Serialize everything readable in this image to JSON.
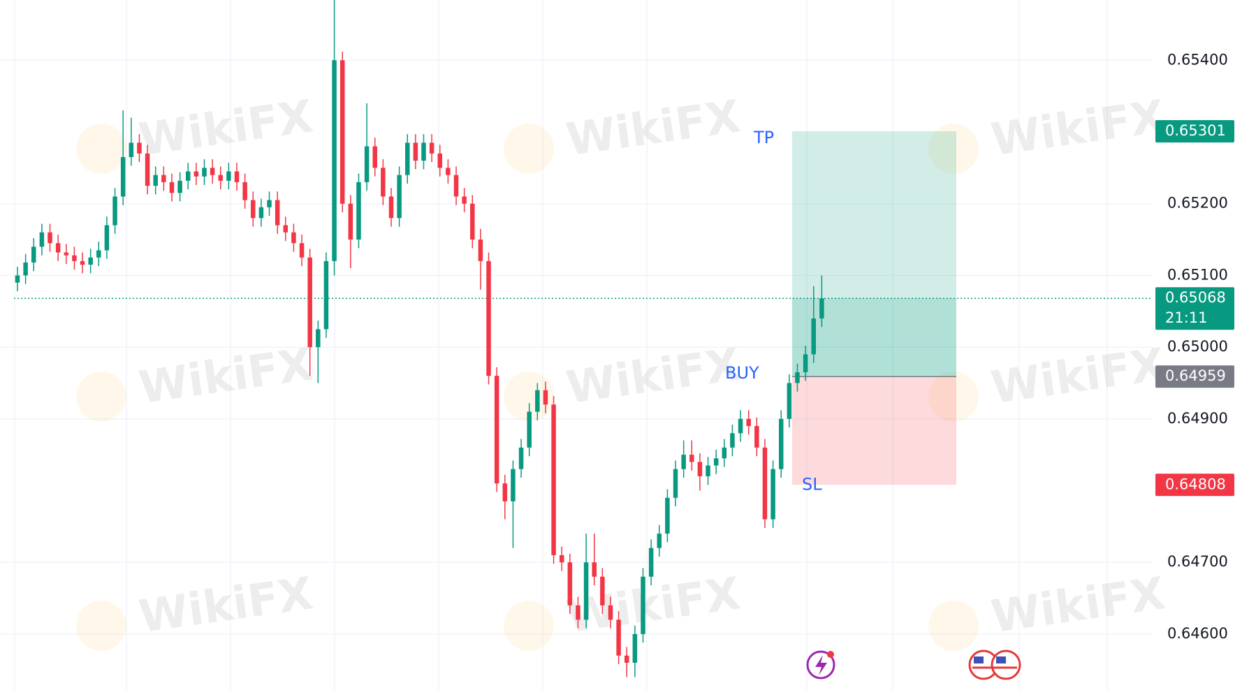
{
  "chart_data": {
    "type": "candlestick",
    "watermark": "WikiFX",
    "ylim": [
      0.64522,
      0.65484
    ],
    "yticks": [
      {
        "value": 0.654,
        "label": "0.65400"
      },
      {
        "value": 0.652,
        "label": "0.65200"
      },
      {
        "value": 0.651,
        "label": "0.65100"
      },
      {
        "value": 0.65,
        "label": "0.65000"
      },
      {
        "value": 0.649,
        "label": "0.64900"
      },
      {
        "value": 0.647,
        "label": "0.64700"
      },
      {
        "value": 0.646,
        "label": "0.64600"
      }
    ],
    "grid": true,
    "up_color": "#089981",
    "down_color": "#f23645",
    "open": [
      0.6509,
      0.651,
      0.65118,
      0.6514,
      0.6516,
      0.65145,
      0.65132,
      0.65128,
      0.6512,
      0.65115,
      0.65125,
      0.65135,
      0.6517,
      0.6521,
      0.65265,
      0.65285,
      0.6527,
      0.65225,
      0.6524,
      0.6523,
      0.65215,
      0.65232,
      0.65245,
      0.65238,
      0.6525,
      0.6524,
      0.65232,
      0.65245,
      0.6523,
      0.65205,
      0.6518,
      0.65195,
      0.65205,
      0.6517,
      0.6516,
      0.65145,
      0.65125,
      0.65,
      0.65025,
      0.6512,
      0.654,
      0.652,
      0.6515,
      0.6523,
      0.6528,
      0.6525,
      0.6521,
      0.6518,
      0.6524,
      0.65285,
      0.6526,
      0.65285,
      0.6527,
      0.6525,
      0.6524,
      0.6521,
      0.652,
      0.6515,
      0.6512,
      0.6496,
      0.6481,
      0.64785,
      0.6483,
      0.6486,
      0.6491,
      0.6494,
      0.6492,
      0.6471,
      0.647,
      0.6464,
      0.6462,
      0.647,
      0.6468,
      0.6464,
      0.6462,
      0.6457,
      0.6456,
      0.646,
      0.6468,
      0.6472,
      0.6474,
      0.6479,
      0.6483,
      0.6485,
      0.6484,
      0.6482,
      0.64835,
      0.64845,
      0.6486,
      0.6488,
      0.649,
      0.6489,
      0.6486,
      0.6476,
      0.6483,
      0.649,
      0.6495,
      0.64965,
      0.6499,
      0.6504
    ],
    "high": [
      0.65112,
      0.6513,
      0.65152,
      0.65172,
      0.65172,
      0.65157,
      0.65144,
      0.6514,
      0.65132,
      0.65137,
      0.65147,
      0.65182,
      0.65222,
      0.6533,
      0.6532,
      0.65297,
      0.65282,
      0.65252,
      0.65252,
      0.65242,
      0.65244,
      0.65257,
      0.65257,
      0.65262,
      0.65262,
      0.65252,
      0.65257,
      0.65257,
      0.65242,
      0.65217,
      0.65207,
      0.65217,
      0.65217,
      0.65182,
      0.65172,
      0.65157,
      0.65137,
      0.65037,
      0.65132,
      0.65484,
      0.65412,
      0.65212,
      0.65242,
      0.6534,
      0.65292,
      0.65262,
      0.65222,
      0.65252,
      0.65297,
      0.65297,
      0.65297,
      0.65297,
      0.65282,
      0.65262,
      0.65252,
      0.65222,
      0.65212,
      0.65165,
      0.65132,
      0.64972,
      0.64822,
      0.64842,
      0.64872,
      0.64922,
      0.6495,
      0.64952,
      0.64932,
      0.64722,
      0.64712,
      0.64652,
      0.6474,
      0.6474,
      0.64692,
      0.64652,
      0.64632,
      0.64582,
      0.64612,
      0.64692,
      0.64732,
      0.64752,
      0.64802,
      0.64842,
      0.6487,
      0.6487,
      0.64852,
      0.64847,
      0.64857,
      0.64872,
      0.64892,
      0.64912,
      0.64912,
      0.64902,
      0.64872,
      0.64842,
      0.64912,
      0.64962,
      0.64977,
      0.65002,
      0.65085,
      0.651
    ],
    "low": [
      0.65078,
      0.65088,
      0.65106,
      0.65128,
      0.65133,
      0.6512,
      0.65116,
      0.65108,
      0.65103,
      0.65103,
      0.65113,
      0.65123,
      0.65158,
      0.65198,
      0.65253,
      0.65258,
      0.65213,
      0.65213,
      0.65218,
      0.65203,
      0.65203,
      0.6522,
      0.65226,
      0.65226,
      0.65228,
      0.6522,
      0.6522,
      0.65218,
      0.65193,
      0.65168,
      0.65168,
      0.65183,
      0.65158,
      0.65148,
      0.65133,
      0.65113,
      0.6496,
      0.6495,
      0.65013,
      0.651,
      0.65188,
      0.6511,
      0.65138,
      0.65218,
      0.65238,
      0.65198,
      0.65168,
      0.65168,
      0.65228,
      0.65248,
      0.65248,
      0.65258,
      0.65238,
      0.65228,
      0.65198,
      0.65188,
      0.65138,
      0.6508,
      0.64948,
      0.64798,
      0.6476,
      0.6472,
      0.64818,
      0.64848,
      0.64898,
      0.64908,
      0.64698,
      0.64688,
      0.64628,
      0.64608,
      0.64608,
      0.64668,
      0.64628,
      0.64608,
      0.64558,
      0.6454,
      0.6454,
      0.64588,
      0.64668,
      0.64708,
      0.64728,
      0.64778,
      0.64818,
      0.64828,
      0.648,
      0.64808,
      0.64823,
      0.64833,
      0.64848,
      0.64868,
      0.64878,
      0.64848,
      0.64748,
      0.64748,
      0.64818,
      0.64888,
      0.64938,
      0.64953,
      0.64978,
      0.65028
    ],
    "close": [
      0.651,
      0.65118,
      0.6514,
      0.6516,
      0.65145,
      0.65132,
      0.65128,
      0.6512,
      0.65115,
      0.65125,
      0.65135,
      0.6517,
      0.6521,
      0.65265,
      0.65285,
      0.6527,
      0.65225,
      0.6524,
      0.6523,
      0.65215,
      0.65232,
      0.65245,
      0.65238,
      0.6525,
      0.6524,
      0.65232,
      0.65245,
      0.6523,
      0.65205,
      0.6518,
      0.65195,
      0.65205,
      0.6517,
      0.6516,
      0.65145,
      0.65125,
      0.65,
      0.65025,
      0.6512,
      0.654,
      0.652,
      0.6515,
      0.6523,
      0.6528,
      0.6525,
      0.6521,
      0.6518,
      0.6524,
      0.65285,
      0.6526,
      0.65285,
      0.6527,
      0.6525,
      0.6524,
      0.6521,
      0.652,
      0.6515,
      0.6512,
      0.6496,
      0.6481,
      0.64785,
      0.6483,
      0.6486,
      0.6491,
      0.6494,
      0.6492,
      0.6471,
      0.647,
      0.6464,
      0.6462,
      0.647,
      0.6468,
      0.6464,
      0.6462,
      0.6457,
      0.6456,
      0.646,
      0.6468,
      0.6472,
      0.6474,
      0.6479,
      0.6483,
      0.6485,
      0.6484,
      0.6482,
      0.64835,
      0.64845,
      0.6486,
      0.6488,
      0.649,
      0.6489,
      0.6486,
      0.6476,
      0.6483,
      0.649,
      0.6495,
      0.64965,
      0.6499,
      0.6504,
      0.65068
    ],
    "last_price": 0.65068,
    "last_price_color": "#089981",
    "countdown": "21:11",
    "position": {
      "take_profit": 0.65301,
      "take_profit_label": "TP",
      "entry": 0.64959,
      "entry_label": "BUY",
      "stop_loss": 0.64808,
      "stop_loss_label": "SL",
      "profit_color": "#089981",
      "loss_color": "#f23645",
      "entry_color": "#787b86"
    }
  }
}
